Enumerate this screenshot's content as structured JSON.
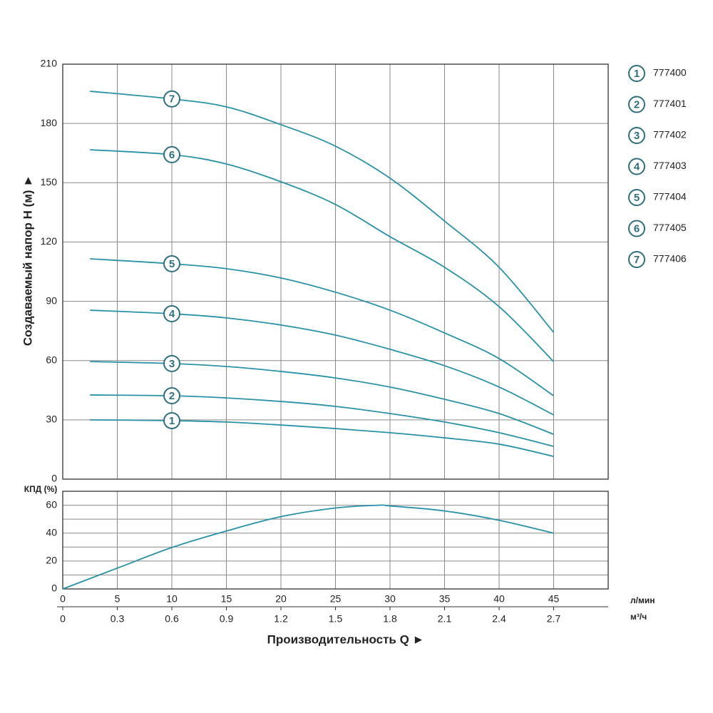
{
  "chart_data": [
    {
      "type": "line",
      "ylabel": "Создаваемый напор H (м) ►",
      "xlim": [
        0,
        50
      ],
      "ylim": [
        0,
        210
      ],
      "yticks": [
        0,
        30,
        60,
        90,
        120,
        150,
        180,
        210
      ],
      "grid": true,
      "x": [
        2.5,
        10,
        15,
        20,
        25,
        30,
        35,
        40,
        45
      ],
      "legend": "right",
      "series": [
        {
          "name": "777400",
          "label": "1",
          "color": "#2a92a6",
          "values": [
            30,
            29.6,
            28.9,
            27.4,
            25.6,
            23.5,
            20.9,
            17.7,
            11.5
          ]
        },
        {
          "name": "777401",
          "label": "2",
          "color": "#2a92a6",
          "values": [
            42.6,
            42.2,
            41.1,
            39.3,
            36.8,
            33.2,
            28.9,
            23.5,
            16.6
          ]
        },
        {
          "name": "777402",
          "label": "3",
          "color": "#2a92a6",
          "values": [
            59.5,
            58.5,
            57,
            54.5,
            51.2,
            46.6,
            40.4,
            33.2,
            22.7
          ]
        },
        {
          "name": "777403",
          "label": "4",
          "color": "#2a92a6",
          "values": [
            85.5,
            83.7,
            81.6,
            78,
            72.9,
            65.7,
            57.4,
            46.6,
            32.5
          ]
        },
        {
          "name": "777404",
          "label": "5",
          "color": "#2a92a6",
          "values": [
            111.5,
            109,
            106.5,
            101.8,
            94.6,
            85.5,
            74,
            61,
            42.2
          ]
        },
        {
          "name": "777405",
          "label": "6",
          "color": "#2a92a6",
          "values": [
            166.7,
            164.2,
            159.5,
            150.5,
            139,
            122.7,
            107.2,
            87.3,
            59.5
          ]
        },
        {
          "name": "777406",
          "label": "7",
          "color": "#2a92a6",
          "values": [
            196.3,
            192.4,
            188.4,
            179.4,
            168.5,
            152.3,
            130.6,
            107.2,
            74.3
          ]
        }
      ]
    },
    {
      "type": "line",
      "ylabel": "КПД (%)",
      "xlabel": "Производительность Q ►",
      "xunit": "л/мин",
      "x2unit": "м³/ч",
      "xlim": [
        0,
        50
      ],
      "xticks": [
        0,
        5,
        10,
        15,
        20,
        25,
        30,
        35,
        40,
        45
      ],
      "x2lim": [
        0,
        3.0
      ],
      "x2ticks": [
        0,
        0.3,
        0.6,
        0.9,
        1.2,
        1.5,
        1.8,
        2.1,
        2.4,
        2.7
      ],
      "ylim": [
        0,
        70
      ],
      "yticks": [
        0,
        20,
        40,
        60
      ],
      "yminor": [
        10,
        30,
        50
      ],
      "grid": true,
      "x": [
        0,
        5,
        10,
        15,
        20,
        25,
        29,
        30,
        35,
        40,
        45
      ],
      "series": [
        {
          "color": "#2a92a6",
          "values": [
            0,
            14.9,
            29.7,
            41.5,
            51.8,
            58,
            60,
            59.5,
            55.9,
            49.2,
            40
          ]
        }
      ]
    }
  ]
}
